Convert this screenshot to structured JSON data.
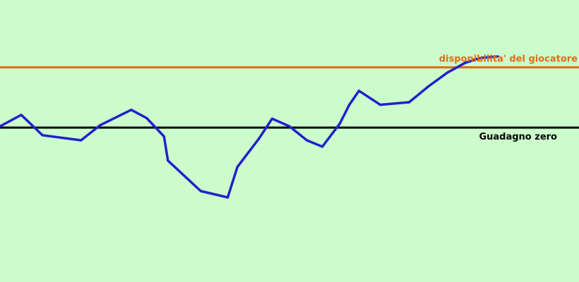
{
  "chart_data": {
    "type": "line",
    "background_color": "#ccfccc",
    "grid": false,
    "axes_visible": false,
    "x": [
      0,
      1,
      2,
      3,
      4,
      5,
      6,
      7,
      8,
      9,
      10,
      11,
      12,
      13,
      14,
      15,
      16,
      17,
      18,
      19,
      20,
      21,
      22,
      23,
      24,
      25,
      26
    ],
    "xlim": [
      0,
      30
    ],
    "ylim": [
      -125,
      110
    ],
    "series": [
      {
        "values": [
          2,
          20,
          -12,
          -20,
          4,
          28,
          15,
          -14,
          -52,
          -100,
          -110,
          -62,
          -18,
          14,
          2,
          -20,
          -30,
          6,
          36,
          58,
          36,
          40,
          65,
          87,
          102,
          110,
          112
        ],
        "x": [
          0,
          1.1,
          2.2,
          4.2,
          5.2,
          6.8,
          7.6,
          8.5,
          8.7,
          10.4,
          11.8,
          12.3,
          13.4,
          14.1,
          15,
          15.9,
          16.7,
          17.6,
          18.1,
          18.6,
          19.7,
          21.2,
          22.2,
          23.2,
          24.1,
          24.9,
          25.8
        ],
        "color": "#2121cc"
      }
    ],
    "reference_lines": [
      {
        "y": 0,
        "label": "Guadagno zero",
        "color": "#000000"
      },
      {
        "y": 95,
        "label": "disponibilita' del giocatore",
        "color": "#e36b1a"
      }
    ]
  }
}
